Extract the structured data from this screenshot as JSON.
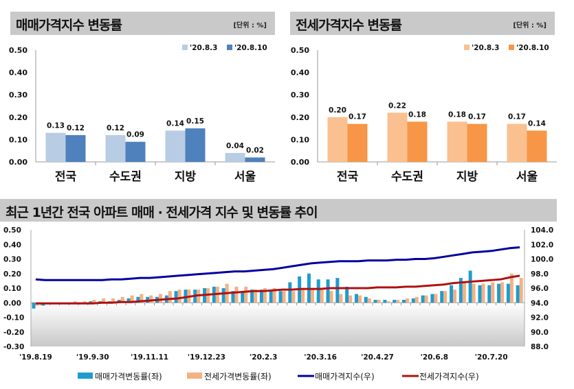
{
  "panels": [
    {
      "title": "매매가격지수 변동률",
      "unit": "[단위 : %]"
    },
    {
      "title": "전세가격지수 변동률",
      "unit": "[단위 : %]"
    },
    {
      "title": "최근 1년간 전국 아파트 매매 · 전세가격 지수 및 변동률 추이"
    }
  ],
  "colors": {
    "sale_prev": "#b8cce4",
    "sale_cur": "#4f81bd",
    "jeonse_prev": "#fac090",
    "jeonse_cur": "#f79646",
    "sale_rate": "#1f9bcf",
    "jeonse_rate": "#f4b183",
    "sale_index": "#0000a0",
    "jeonse_index": "#b01010"
  },
  "chart_data": [
    {
      "type": "bar",
      "title": "매매가격지수 변동률",
      "categories": [
        "전국",
        "수도권",
        "지방",
        "서울"
      ],
      "ylim": [
        0,
        0.5
      ],
      "yticks": [
        "0.00",
        "0.10",
        "0.20",
        "0.30",
        "0.40",
        "0.50"
      ],
      "legend": "top-right",
      "series": [
        {
          "name": "'20.8.3",
          "values": [
            0.13,
            0.12,
            0.14,
            0.04
          ]
        },
        {
          "name": "'20.8.10",
          "values": [
            0.12,
            0.09,
            0.15,
            0.02
          ]
        }
      ]
    },
    {
      "type": "bar",
      "title": "전세가격지수 변동률",
      "categories": [
        "전국",
        "수도권",
        "지방",
        "서울"
      ],
      "ylim": [
        0,
        0.5
      ],
      "yticks": [
        "0.00",
        "0.10",
        "0.20",
        "0.30",
        "0.40",
        "0.50"
      ],
      "legend": "top-right",
      "series": [
        {
          "name": "'20.8.3",
          "values": [
            0.2,
            0.22,
            0.18,
            0.17
          ]
        },
        {
          "name": "'20.8.10",
          "values": [
            0.17,
            0.18,
            0.17,
            0.14
          ]
        }
      ]
    },
    {
      "type": "bar+line",
      "title": "최근 1년간 전국 아파트 매매 · 전세가격 지수 및 변동률 추이",
      "legend": "bottom",
      "xticks": [
        "'19.8.19",
        "'19.9.30",
        "'19.11.11",
        "'19.12.23",
        "'20.2.3",
        "'20.3.16",
        "'20.4.27",
        "'20.6.8",
        "'20.7.20"
      ],
      "ylim_left": [
        -0.3,
        0.5
      ],
      "yticks_left": [
        "0.50",
        "0.40",
        "0.30",
        "0.20",
        "0.10",
        "0.00",
        "-0.10",
        "-0.20",
        "-0.30"
      ],
      "ylim_right": [
        88,
        104
      ],
      "yticks_right": [
        "104.0",
        "102.0",
        "100.0",
        "98.0",
        "96.0",
        "94.0",
        "92.0",
        "90.0",
        "88.0"
      ],
      "series": [
        {
          "name": "매매가격변동률(좌)",
          "axis": "left",
          "kind": "bar",
          "values": [
            -0.04,
            -0.02,
            -0.01,
            0.0,
            0.0,
            0.0,
            0.01,
            0.01,
            0.01,
            0.02,
            0.03,
            0.04,
            0.04,
            0.04,
            0.05,
            0.08,
            0.09,
            0.09,
            0.1,
            0.11,
            0.1,
            0.08,
            0.07,
            0.09,
            0.09,
            0.09,
            0.08,
            0.14,
            0.18,
            0.2,
            0.16,
            0.16,
            0.17,
            0.11,
            0.06,
            0.04,
            0.02,
            0.02,
            0.02,
            0.02,
            0.03,
            0.05,
            0.06,
            0.08,
            0.12,
            0.17,
            0.22,
            0.12,
            0.12,
            0.13,
            0.13,
            0.12
          ]
        },
        {
          "name": "전세가격변동률(좌)",
          "axis": "left",
          "kind": "bar",
          "values": [
            -0.02,
            -0.01,
            -0.01,
            0.0,
            0.01,
            0.01,
            0.02,
            0.03,
            0.03,
            0.04,
            0.05,
            0.06,
            0.05,
            0.06,
            0.08,
            0.09,
            0.09,
            0.09,
            0.1,
            0.11,
            0.13,
            0.11,
            0.11,
            0.09,
            0.1,
            0.1,
            0.08,
            0.08,
            0.1,
            0.1,
            0.1,
            0.08,
            0.06,
            0.05,
            0.05,
            0.03,
            0.02,
            0.01,
            0.02,
            0.03,
            0.04,
            0.05,
            0.06,
            0.08,
            0.09,
            0.14,
            0.13,
            0.13,
            0.14,
            0.14,
            0.2,
            0.17
          ]
        },
        {
          "name": "매매가격지수(우)",
          "axis": "right",
          "kind": "line",
          "values": [
            97.2,
            97.1,
            97.1,
            97.1,
            97.1,
            97.1,
            97.1,
            97.1,
            97.2,
            97.2,
            97.3,
            97.4,
            97.4,
            97.5,
            97.6,
            97.7,
            97.8,
            97.9,
            98.0,
            98.1,
            98.2,
            98.3,
            98.3,
            98.4,
            98.5,
            98.6,
            98.8,
            99.0,
            99.2,
            99.4,
            99.5,
            99.6,
            99.7,
            99.7,
            99.7,
            99.8,
            99.8,
            99.8,
            99.9,
            99.9,
            100.0,
            100.0,
            100.1,
            100.3,
            100.5,
            100.7,
            100.9,
            101.0,
            101.1,
            101.3,
            101.5,
            101.6
          ]
        },
        {
          "name": "전세가격지수(우)",
          "axis": "right",
          "kind": "line",
          "values": [
            93.9,
            93.9,
            93.9,
            93.9,
            93.9,
            93.9,
            93.9,
            94.0,
            94.0,
            94.1,
            94.1,
            94.2,
            94.3,
            94.4,
            94.5,
            94.6,
            94.8,
            95.0,
            95.1,
            95.2,
            95.3,
            95.4,
            95.5,
            95.6,
            95.6,
            95.7,
            95.8,
            95.8,
            95.9,
            95.9,
            95.9,
            96.0,
            96.0,
            96.0,
            96.0,
            96.0,
            96.1,
            96.1,
            96.1,
            96.2,
            96.2,
            96.3,
            96.4,
            96.5,
            96.7,
            96.8,
            96.9,
            97.0,
            97.1,
            97.2,
            97.5,
            97.7
          ]
        }
      ]
    }
  ]
}
